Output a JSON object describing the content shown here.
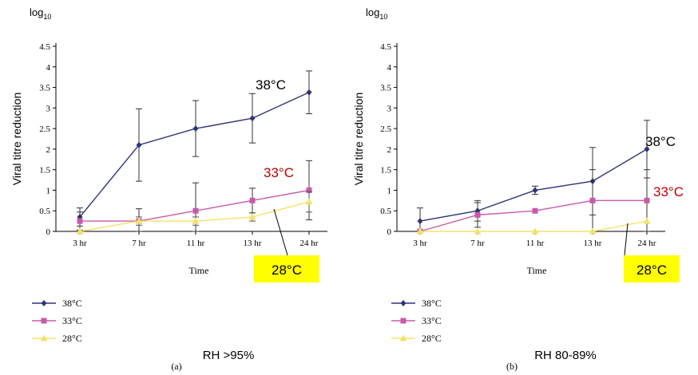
{
  "chart_data": [
    {
      "type": "line",
      "panel_label": "(a)",
      "caption": "RH >95%",
      "ylabel": "Viral titre reduction",
      "ylabel_prefix": "log",
      "ylabel_sub": "10",
      "xlabel": "Time",
      "categories": [
        "3 hr",
        "7 hr",
        "11 hr",
        "13 hr",
        "24 hr"
      ],
      "ylim": [
        0,
        4.5
      ],
      "yticks": [
        "0",
        "0.5",
        "1",
        "1.5",
        "2",
        "2.5",
        "3",
        "3.5",
        "4",
        "4.5"
      ],
      "series": [
        {
          "name": "38°C",
          "color": "#2e3477",
          "marker": "diamond",
          "values": [
            0.35,
            2.1,
            2.5,
            2.75,
            3.38
          ],
          "errors": [
            0.22,
            0.88,
            0.68,
            0.6,
            0.52
          ]
        },
        {
          "name": "33°C",
          "color": "#c85aa8",
          "marker": "square",
          "values": [
            0.25,
            0.25,
            0.5,
            0.75,
            1.0
          ],
          "errors": [
            0.22,
            0.3,
            0.68,
            0.3,
            0.72
          ]
        },
        {
          "name": "28°C",
          "color": "#f2e36a",
          "marker": "triangle",
          "values": [
            0.0,
            0.25,
            0.25,
            0.35,
            0.72
          ],
          "errors": [
            0.0,
            0.1,
            0.1,
            0.1,
            0.25
          ]
        }
      ],
      "annotations": [
        {
          "text": "38°C",
          "color": "#000000"
        },
        {
          "text": "33°C",
          "color": "#c00000"
        },
        {
          "text": "28°C",
          "color": "#000000",
          "background": "#ffff00"
        }
      ]
    },
    {
      "type": "line",
      "panel_label": "(b)",
      "caption": "RH 80-89%",
      "ylabel": "Viral titre reduction",
      "ylabel_prefix": "log",
      "ylabel_sub": "10",
      "xlabel": "Time",
      "categories": [
        "3 hr",
        "7 hr",
        "11 hr",
        "13 hr",
        "24 hr"
      ],
      "ylim": [
        0,
        4.5
      ],
      "yticks": [
        "0",
        "0.5",
        "1",
        "1.5",
        "2",
        "2.5",
        "3",
        "3.5",
        "4",
        "4.5"
      ],
      "series": [
        {
          "name": "38°C",
          "color": "#2e3477",
          "marker": "diamond",
          "values": [
            0.25,
            0.5,
            1.0,
            1.22,
            2.0
          ],
          "errors": [
            0.32,
            0.25,
            0.1,
            0.82,
            0.7
          ]
        },
        {
          "name": "33°C",
          "color": "#c85aa8",
          "marker": "square",
          "values": [
            0.0,
            0.4,
            0.5,
            0.75,
            0.75
          ],
          "errors": [
            0.0,
            0.3,
            0.0,
            0.75,
            0.75
          ]
        },
        {
          "name": "28°C",
          "color": "#f2e36a",
          "marker": "triangle",
          "values": [
            0.0,
            0.0,
            0.0,
            0.0,
            0.25
          ],
          "errors": [
            0.0,
            0.0,
            0.0,
            0.0,
            0.0
          ]
        }
      ],
      "annotations": [
        {
          "text": "38°C",
          "color": "#000000"
        },
        {
          "text": "33°C",
          "color": "#c00000"
        },
        {
          "text": "28°C",
          "color": "#000000",
          "background": "#ffff00"
        }
      ]
    }
  ]
}
